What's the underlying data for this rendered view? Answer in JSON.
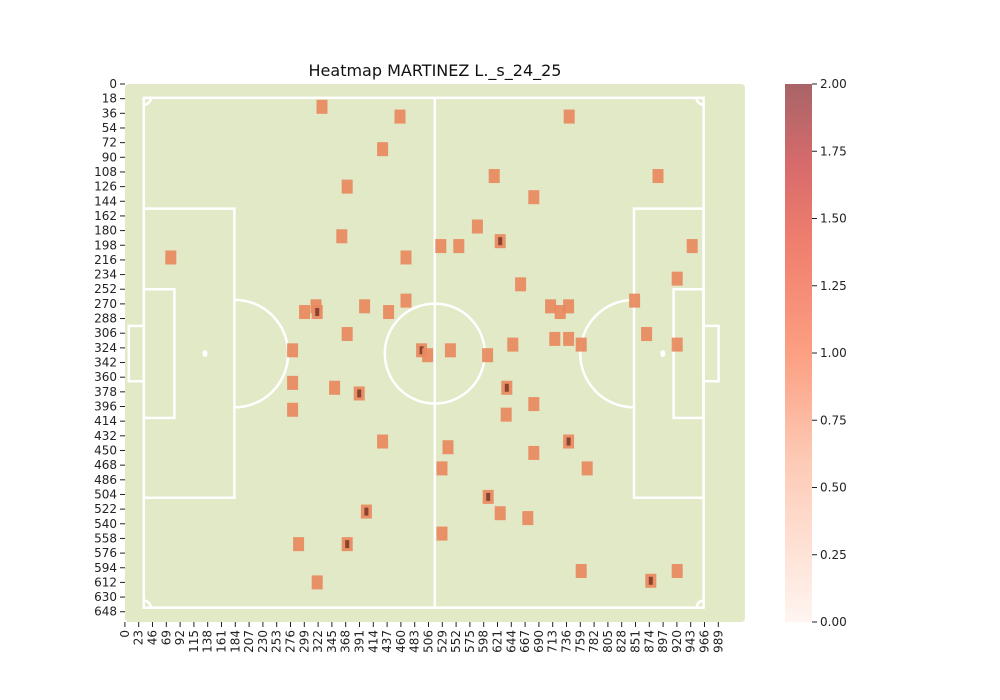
{
  "chart_data": {
    "type": "heatmap",
    "title": "Heatmap MARTINEZ L._s_24_25",
    "xlabel": "",
    "ylabel": "",
    "x_range": [
      0,
      1000
    ],
    "y_range": [
      0,
      660
    ],
    "x_ticks": [
      0,
      23,
      46,
      69,
      92,
      115,
      138,
      161,
      184,
      207,
      230,
      253,
      276,
      299,
      322,
      345,
      368,
      391,
      414,
      437,
      460,
      483,
      506,
      529,
      552,
      575,
      598,
      621,
      644,
      667,
      690,
      713,
      736,
      759,
      782,
      805,
      828,
      851,
      874,
      897,
      920,
      943,
      966,
      989
    ],
    "y_ticks": [
      0,
      18,
      36,
      54,
      72,
      90,
      108,
      126,
      144,
      162,
      180,
      198,
      216,
      234,
      252,
      270,
      288,
      306,
      324,
      342,
      360,
      378,
      396,
      414,
      432,
      450,
      468,
      486,
      504,
      522,
      540,
      558,
      576,
      594,
      612,
      630,
      648
    ],
    "colorbar": {
      "min": 0,
      "max": 2,
      "ticks": [
        "0.00",
        "0.25",
        "0.50",
        "0.75",
        "1.00",
        "1.25",
        "1.50",
        "1.75",
        "2.00"
      ]
    },
    "points": [
      {
        "x": 330,
        "y": 28,
        "v": 1
      },
      {
        "x": 460,
        "y": 40,
        "v": 1
      },
      {
        "x": 742,
        "y": 40,
        "v": 1
      },
      {
        "x": 431,
        "y": 80,
        "v": 1
      },
      {
        "x": 617,
        "y": 113,
        "v": 1
      },
      {
        "x": 890,
        "y": 113,
        "v": 1
      },
      {
        "x": 372,
        "y": 126,
        "v": 1
      },
      {
        "x": 683,
        "y": 139,
        "v": 1
      },
      {
        "x": 589,
        "y": 175,
        "v": 1
      },
      {
        "x": 363,
        "y": 187,
        "v": 1
      },
      {
        "x": 528,
        "y": 199,
        "v": 1
      },
      {
        "x": 558,
        "y": 199,
        "v": 1
      },
      {
        "x": 627,
        "y": 193,
        "v": 2
      },
      {
        "x": 947,
        "y": 199,
        "v": 1
      },
      {
        "x": 78,
        "y": 213,
        "v": 1
      },
      {
        "x": 470,
        "y": 213,
        "v": 1
      },
      {
        "x": 661,
        "y": 246,
        "v": 1
      },
      {
        "x": 922,
        "y": 239,
        "v": 1
      },
      {
        "x": 320,
        "y": 273,
        "v": 1
      },
      {
        "x": 401,
        "y": 273,
        "v": 1
      },
      {
        "x": 470,
        "y": 266,
        "v": 1
      },
      {
        "x": 711,
        "y": 273,
        "v": 1
      },
      {
        "x": 741,
        "y": 273,
        "v": 1
      },
      {
        "x": 851,
        "y": 266,
        "v": 1
      },
      {
        "x": 301,
        "y": 280,
        "v": 1
      },
      {
        "x": 322,
        "y": 280,
        "v": 2
      },
      {
        "x": 441,
        "y": 280,
        "v": 1
      },
      {
        "x": 727,
        "y": 280,
        "v": 1
      },
      {
        "x": 372,
        "y": 307,
        "v": 1
      },
      {
        "x": 718,
        "y": 313,
        "v": 1
      },
      {
        "x": 741,
        "y": 313,
        "v": 1
      },
      {
        "x": 871,
        "y": 307,
        "v": 1
      },
      {
        "x": 281,
        "y": 327,
        "v": 1
      },
      {
        "x": 496,
        "y": 327,
        "v": 2
      },
      {
        "x": 544,
        "y": 327,
        "v": 1
      },
      {
        "x": 648,
        "y": 320,
        "v": 1
      },
      {
        "x": 762,
        "y": 320,
        "v": 1
      },
      {
        "x": 922,
        "y": 320,
        "v": 1
      },
      {
        "x": 506,
        "y": 333,
        "v": 1
      },
      {
        "x": 606,
        "y": 333,
        "v": 1
      },
      {
        "x": 281,
        "y": 367,
        "v": 1
      },
      {
        "x": 351,
        "y": 373,
        "v": 1
      },
      {
        "x": 638,
        "y": 373,
        "v": 2
      },
      {
        "x": 392,
        "y": 380,
        "v": 2
      },
      {
        "x": 683,
        "y": 393,
        "v": 1
      },
      {
        "x": 281,
        "y": 400,
        "v": 1
      },
      {
        "x": 637,
        "y": 406,
        "v": 1
      },
      {
        "x": 431,
        "y": 439,
        "v": 1
      },
      {
        "x": 741,
        "y": 439,
        "v": 2
      },
      {
        "x": 540,
        "y": 446,
        "v": 1
      },
      {
        "x": 683,
        "y": 453,
        "v": 1
      },
      {
        "x": 530,
        "y": 472,
        "v": 1
      },
      {
        "x": 772,
        "y": 472,
        "v": 1
      },
      {
        "x": 607,
        "y": 507,
        "v": 2
      },
      {
        "x": 404,
        "y": 525,
        "v": 2
      },
      {
        "x": 627,
        "y": 527,
        "v": 1
      },
      {
        "x": 673,
        "y": 533,
        "v": 1
      },
      {
        "x": 530,
        "y": 552,
        "v": 1
      },
      {
        "x": 291,
        "y": 565,
        "v": 1
      },
      {
        "x": 372,
        "y": 565,
        "v": 2
      },
      {
        "x": 762,
        "y": 598,
        "v": 1
      },
      {
        "x": 922,
        "y": 598,
        "v": 1
      },
      {
        "x": 322,
        "y": 612,
        "v": 1
      },
      {
        "x": 878,
        "y": 610,
        "v": 2
      }
    ]
  }
}
